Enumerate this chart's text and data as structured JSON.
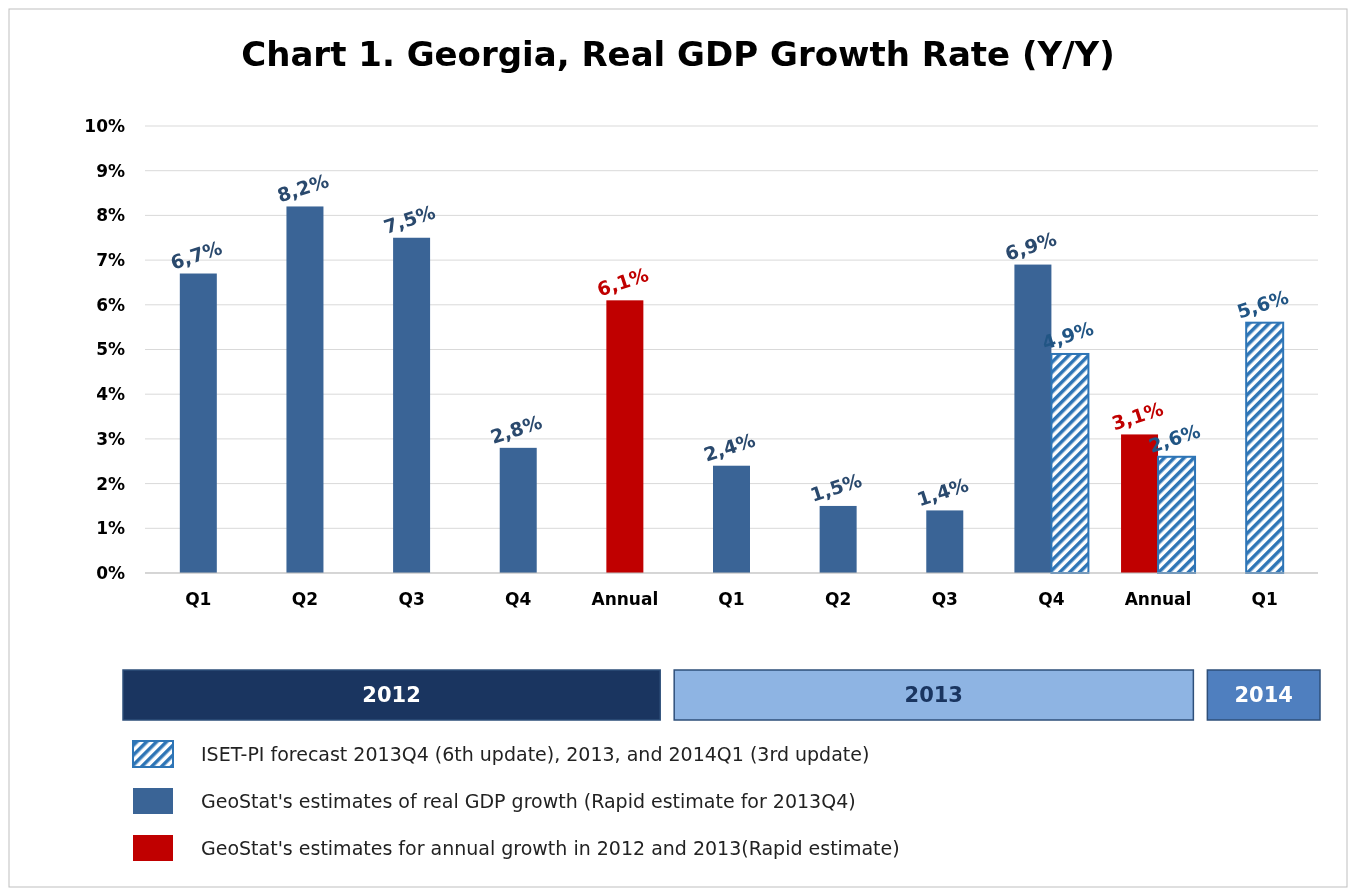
{
  "chart_data": {
    "type": "bar",
    "title": "Chart 1. Georgia, Real GDP Growth Rate (Y/Y)",
    "categories": [
      "Q1",
      "Q2",
      "Q3",
      "Q4",
      "Annual",
      "Q1",
      "Q2",
      "Q3",
      "Q4",
      "Annual",
      "Q1"
    ],
    "series": [
      {
        "name": "ISET-PI forecast 2013Q4 (6th update), 2013, and 2014Q1 (3rd update)",
        "color": "#2e75b6",
        "values": [
          null,
          null,
          null,
          null,
          null,
          null,
          null,
          null,
          4.9,
          2.6,
          5.6
        ],
        "value_labels": [
          null,
          null,
          null,
          null,
          null,
          null,
          null,
          null,
          "4,9%",
          "2,6%",
          "5,6%"
        ]
      },
      {
        "name": "GeoStat's estimates of real GDP growth (Rapid estimate for 2013Q4)",
        "color": "#3a6496",
        "values": [
          6.7,
          8.2,
          7.5,
          2.8,
          null,
          2.4,
          1.5,
          1.4,
          6.9,
          null,
          null
        ],
        "value_labels": [
          "6,7%",
          "8,2%",
          "7,5%",
          "2,8%",
          null,
          "2,4%",
          "1,5%",
          "1,4%",
          "6,9%",
          null,
          null
        ]
      },
      {
        "name": "GeoStat's estimates for annual growth in 2012 and 2013(Rapid estimate)",
        "color": "#c00000",
        "values": [
          null,
          null,
          null,
          null,
          6.1,
          null,
          null,
          null,
          null,
          3.1,
          null
        ],
        "value_labels": [
          null,
          null,
          null,
          null,
          "6,1%",
          null,
          null,
          null,
          null,
          "3,1%",
          null
        ]
      }
    ],
    "ylim": [
      0,
      10
    ],
    "yticks": [
      {
        "value": 0,
        "label": "0%"
      },
      {
        "value": 1,
        "label": "1%"
      },
      {
        "value": 2,
        "label": "2%"
      },
      {
        "value": 3,
        "label": "3%"
      },
      {
        "value": 4,
        "label": "4%"
      },
      {
        "value": 5,
        "label": "5%"
      },
      {
        "value": 6,
        "label": "6%"
      },
      {
        "value": 7,
        "label": "7%"
      },
      {
        "value": 8,
        "label": "8%"
      },
      {
        "value": 9,
        "label": "9%"
      },
      {
        "value": 10,
        "label": "10%"
      }
    ],
    "grid": "y",
    "legend": "bottom",
    "annotations": [
      "2012",
      "2013",
      "2014"
    ]
  }
}
